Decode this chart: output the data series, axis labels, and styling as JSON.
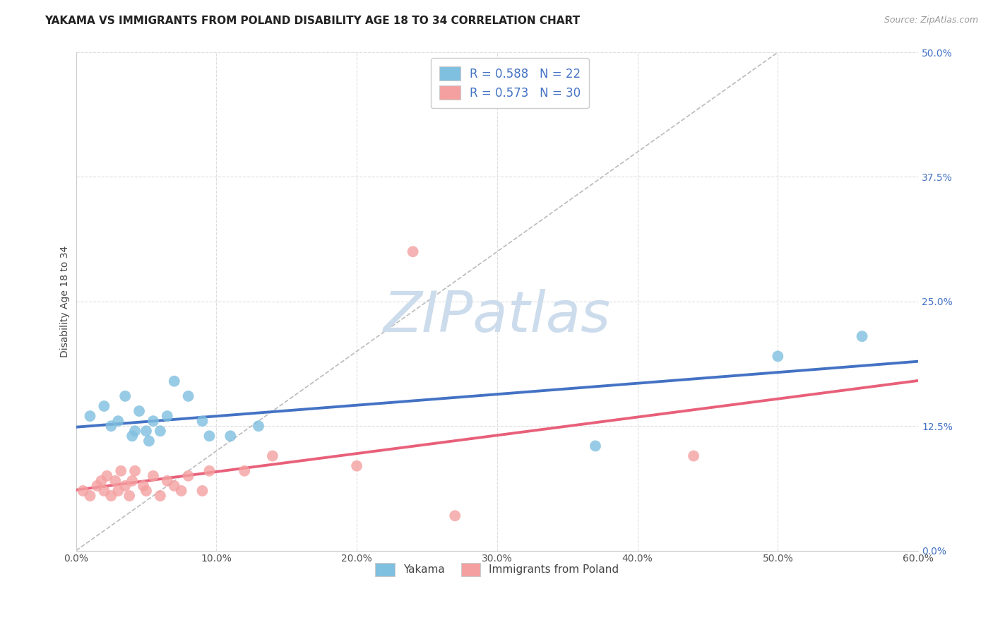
{
  "title": "YAKAMA VS IMMIGRANTS FROM POLAND DISABILITY AGE 18 TO 34 CORRELATION CHART",
  "source": "Source: ZipAtlas.com",
  "ylabel": "Disability Age 18 to 34",
  "xmin": 0.0,
  "xmax": 0.6,
  "ymin": 0.0,
  "ymax": 0.5,
  "xticks": [
    0.0,
    0.1,
    0.2,
    0.3,
    0.4,
    0.5,
    0.6
  ],
  "yticks_right": [
    0.0,
    0.125,
    0.25,
    0.375,
    0.5
  ],
  "ytick_labels_right": [
    "0.0%",
    "12.5%",
    "25.0%",
    "37.5%",
    "50.0%"
  ],
  "xtick_labels": [
    "0.0%",
    "10.0%",
    "20.0%",
    "30.0%",
    "40.0%",
    "50.0%",
    "60.0%"
  ],
  "group1_name": "Yakama",
  "group1_color": "#7fbfdf",
  "group1_R": 0.588,
  "group1_N": 22,
  "group1_scatter_x": [
    0.01,
    0.02,
    0.025,
    0.03,
    0.035,
    0.04,
    0.042,
    0.045,
    0.05,
    0.052,
    0.055,
    0.06,
    0.065,
    0.07,
    0.08,
    0.09,
    0.095,
    0.11,
    0.13,
    0.37,
    0.5,
    0.56
  ],
  "group1_scatter_y": [
    0.135,
    0.145,
    0.125,
    0.13,
    0.155,
    0.115,
    0.12,
    0.14,
    0.12,
    0.11,
    0.13,
    0.12,
    0.135,
    0.17,
    0.155,
    0.13,
    0.115,
    0.115,
    0.125,
    0.105,
    0.195,
    0.215
  ],
  "group2_name": "Immigrants from Poland",
  "group2_color": "#f4a0a0",
  "group2_R": 0.573,
  "group2_N": 30,
  "group2_scatter_x": [
    0.005,
    0.01,
    0.015,
    0.018,
    0.02,
    0.022,
    0.025,
    0.028,
    0.03,
    0.032,
    0.035,
    0.038,
    0.04,
    0.042,
    0.048,
    0.05,
    0.055,
    0.06,
    0.065,
    0.07,
    0.075,
    0.08,
    0.09,
    0.095,
    0.12,
    0.14,
    0.2,
    0.24,
    0.27,
    0.44
  ],
  "group2_scatter_y": [
    0.06,
    0.055,
    0.065,
    0.07,
    0.06,
    0.075,
    0.055,
    0.07,
    0.06,
    0.08,
    0.065,
    0.055,
    0.07,
    0.08,
    0.065,
    0.06,
    0.075,
    0.055,
    0.07,
    0.065,
    0.06,
    0.075,
    0.06,
    0.08,
    0.08,
    0.095,
    0.085,
    0.3,
    0.035,
    0.095
  ],
  "trend_color_1": "#4472c4",
  "trend_color_2": "#e8607a",
  "ref_line_color": "#bbbbbb",
  "watermark_text": "ZIPatlas",
  "watermark_color": "#ccdcec",
  "background_color": "#ffffff",
  "grid_color": "#dddddd",
  "legend_R_N_color": "#4472c4",
  "axis_label_color": "#555555",
  "title_color": "#222222",
  "source_color": "#999999"
}
